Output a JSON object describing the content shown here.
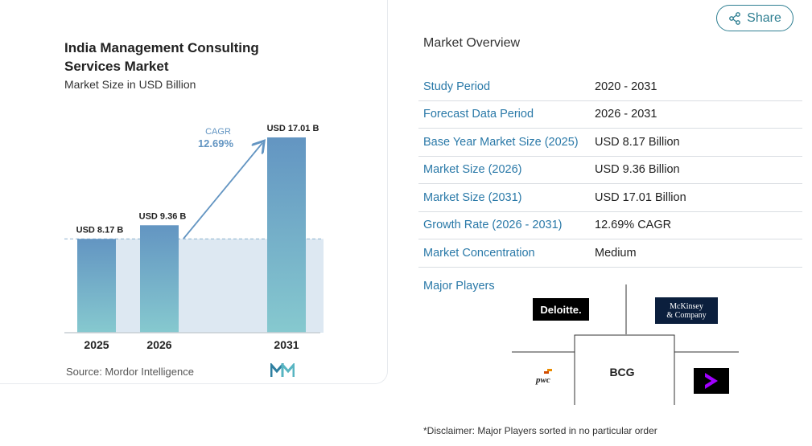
{
  "chart_card": {
    "title_line1": "India Management Consulting",
    "title_line2": "Services Market",
    "subtitle": "Market Size in USD Billion",
    "source": "Source: Mordor Intelligence",
    "cagr_label": "CAGR",
    "cagr_value": "12.69%"
  },
  "chart_data": {
    "type": "bar",
    "title": "India Management Consulting Services Market",
    "subtitle": "Market Size in USD Billion",
    "categories": [
      "2025",
      "2026",
      "2031"
    ],
    "values": [
      8.17,
      9.36,
      17.01
    ],
    "data_labels": [
      "USD 8.17 B",
      "USD 9.36 B",
      "USD 17.01 B"
    ],
    "ylim": [
      0,
      17.01
    ],
    "annotation": "CAGR 12.69%",
    "colors": {
      "bar_top": "#6395c2",
      "bar_bottom": "#86c9cf",
      "area": "#dde8f2",
      "arrow": "#6395c2"
    }
  },
  "share": {
    "label": "Share",
    "icon": "share-icon"
  },
  "overview": {
    "heading": "Market Overview",
    "rows": [
      {
        "label": "Study Period",
        "value": "2020 - 2031"
      },
      {
        "label": "Forecast Data Period",
        "value": "2026 - 2031"
      },
      {
        "label": "Base Year Market Size (2025)",
        "value": "USD 8.17 Billion"
      },
      {
        "label": "Market Size (2026)",
        "value": "USD 9.36 Billion"
      },
      {
        "label": "Market Size (2031)",
        "value": "USD 17.01 Billion"
      },
      {
        "label": "Growth Rate (2026 - 2031)",
        "value": "12.69% CAGR"
      },
      {
        "label": "Market Concentration",
        "value": "Medium"
      }
    ]
  },
  "players": {
    "label": "Major Players",
    "logos": {
      "deloitte": "Deloitte.",
      "mckinsey_line1": "McKinsey",
      "mckinsey_line2": "& Company",
      "bcg": "BCG",
      "pwc": "pwc"
    }
  },
  "disclaimer": "*Disclaimer: Major Players sorted in no particular order",
  "colors": {
    "accent": "#2a79a8",
    "share": "#2f7f92"
  }
}
